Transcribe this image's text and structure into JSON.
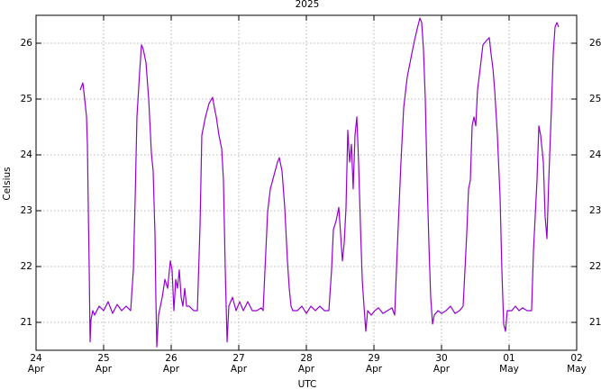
{
  "chart_data": {
    "type": "line",
    "title": "2025",
    "ylabel": "Celsius",
    "xlabel": "UTC",
    "xlim": [
      0,
      8
    ],
    "xticks": [
      {
        "value": 0,
        "label": "24",
        "month": "Apr"
      },
      {
        "value": 1,
        "label": "25",
        "month": "Apr"
      },
      {
        "value": 2,
        "label": "26",
        "month": "Apr"
      },
      {
        "value": 3,
        "label": "27",
        "month": "Apr"
      },
      {
        "value": 4,
        "label": "28",
        "month": "Apr"
      },
      {
        "value": 5,
        "label": "29",
        "month": "Apr"
      },
      {
        "value": 6,
        "label": "30",
        "month": "Apr"
      },
      {
        "value": 7,
        "label": "01",
        "month": "May"
      },
      {
        "value": 8,
        "label": "02",
        "month": "May"
      }
    ],
    "ylim": [
      20.5,
      26.5
    ],
    "yticks": [
      21,
      22,
      23,
      24,
      25,
      26
    ],
    "y2lim": [
      20.5,
      26.5
    ],
    "y2ticks": [
      21,
      22,
      23,
      24,
      25,
      26
    ],
    "grid": true,
    "color": "#9400d3",
    "x": [
      0.653,
      0.693,
      0.72,
      0.747,
      0.76,
      0.773,
      0.787,
      0.8,
      0.813,
      0.84,
      0.867,
      0.933,
      1.0,
      1.067,
      1.133,
      1.2,
      1.267,
      1.333,
      1.4,
      1.44,
      1.467,
      1.493,
      1.533,
      1.56,
      1.587,
      1.627,
      1.667,
      1.707,
      1.733,
      1.76,
      1.773,
      1.787,
      1.813,
      1.84,
      1.867,
      1.907,
      1.947,
      1.987,
      2.013,
      2.04,
      2.067,
      2.093,
      2.12,
      2.147,
      2.173,
      2.2,
      2.227,
      2.267,
      2.333,
      2.387,
      2.427,
      2.453,
      2.507,
      2.56,
      2.613,
      2.64,
      2.667,
      2.707,
      2.747,
      2.773,
      2.8,
      2.827,
      2.853,
      2.907,
      2.96,
      3.013,
      3.067,
      3.133,
      3.2,
      3.267,
      3.333,
      3.36,
      3.4,
      3.427,
      3.467,
      3.52,
      3.573,
      3.6,
      3.64,
      3.68,
      3.72,
      3.747,
      3.773,
      3.8,
      3.867,
      3.933,
      4.0,
      4.067,
      4.133,
      4.2,
      4.267,
      4.333,
      4.373,
      4.4,
      4.44,
      4.48,
      4.507,
      4.533,
      4.56,
      4.587,
      4.613,
      4.64,
      4.667,
      4.693,
      4.72,
      4.747,
      4.773,
      4.8,
      4.827,
      4.853,
      4.88,
      4.907,
      4.96,
      5.013,
      5.067,
      5.133,
      5.2,
      5.267,
      5.307,
      5.333,
      5.36,
      5.4,
      5.44,
      5.493,
      5.547,
      5.6,
      5.653,
      5.68,
      5.707,
      5.733,
      5.76,
      5.787,
      5.813,
      5.84,
      5.867,
      5.893,
      5.947,
      6.0,
      6.067,
      6.133,
      6.2,
      6.267,
      6.32,
      6.347,
      6.373,
      6.4,
      6.427,
      6.453,
      6.48,
      6.507,
      6.533,
      6.573,
      6.613,
      6.667,
      6.707,
      6.733,
      6.76,
      6.787,
      6.827,
      6.867,
      6.893,
      6.92,
      6.947,
      6.973,
      7.04,
      7.093,
      7.147,
      7.2,
      7.267,
      7.333,
      7.36,
      7.413,
      7.44,
      7.467,
      7.507,
      7.533,
      7.56,
      7.587,
      7.627,
      7.653,
      7.68,
      7.707,
      7.733
    ],
    "values": [
      25.16,
      25.29,
      25.0,
      24.68,
      24.19,
      23.06,
      21.94,
      20.65,
      21.05,
      21.21,
      21.13,
      21.29,
      21.21,
      21.37,
      21.16,
      21.32,
      21.21,
      21.29,
      21.21,
      21.94,
      23.23,
      24.68,
      25.48,
      25.97,
      25.89,
      25.65,
      25.0,
      24.03,
      23.71,
      22.58,
      21.45,
      20.56,
      21.13,
      21.29,
      21.45,
      21.77,
      21.61,
      22.1,
      21.94,
      21.21,
      21.77,
      21.61,
      21.94,
      21.45,
      21.29,
      21.61,
      21.29,
      21.29,
      21.21,
      21.21,
      22.74,
      24.35,
      24.68,
      24.92,
      25.03,
      24.84,
      24.68,
      24.35,
      24.11,
      23.55,
      21.94,
      20.65,
      21.29,
      21.45,
      21.21,
      21.37,
      21.21,
      21.37,
      21.21,
      21.21,
      21.26,
      21.21,
      22.26,
      22.98,
      23.39,
      23.63,
      23.87,
      23.95,
      23.71,
      23.06,
      22.1,
      21.61,
      21.29,
      21.21,
      21.21,
      21.29,
      21.16,
      21.29,
      21.21,
      21.29,
      21.21,
      21.21,
      21.94,
      22.66,
      22.82,
      23.06,
      22.58,
      22.1,
      22.42,
      23.06,
      24.44,
      23.87,
      24.19,
      23.39,
      24.35,
      24.68,
      23.87,
      22.74,
      21.77,
      21.29,
      20.84,
      21.21,
      21.13,
      21.21,
      21.26,
      21.16,
      21.21,
      21.26,
      21.13,
      21.94,
      22.74,
      23.87,
      24.84,
      25.4,
      25.73,
      26.05,
      26.32,
      26.45,
      26.37,
      25.89,
      25.0,
      23.55,
      22.42,
      21.45,
      20.97,
      21.13,
      21.21,
      21.16,
      21.21,
      21.29,
      21.16,
      21.21,
      21.29,
      21.94,
      22.58,
      23.39,
      23.55,
      24.52,
      24.68,
      24.52,
      25.16,
      25.56,
      25.97,
      26.05,
      26.1,
      25.81,
      25.56,
      25.16,
      24.35,
      23.23,
      21.94,
      20.97,
      20.84,
      21.21,
      21.21,
      21.29,
      21.21,
      21.26,
      21.21,
      21.21,
      22.26,
      23.55,
      24.52,
      24.35,
      23.87,
      22.9,
      22.5,
      23.55,
      24.84,
      25.81,
      26.29,
      26.37,
      26.29
    ]
  }
}
